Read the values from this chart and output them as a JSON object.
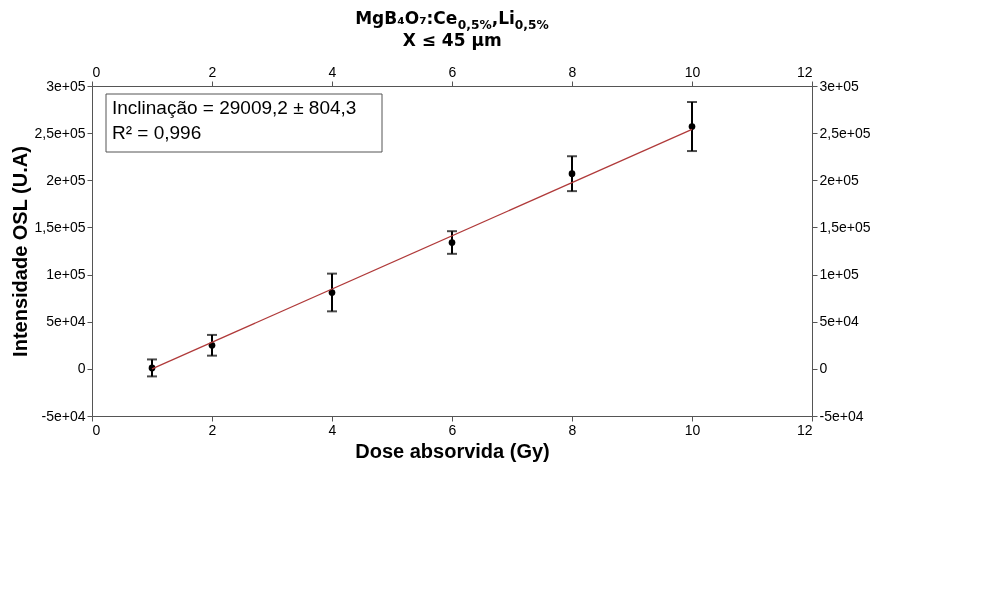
{
  "chart_data": {
    "type": "scatter",
    "title": "MgB₄O₇:Ce$_{0,5%}$,Li$_{0,5%}$",
    "subtitle": "X ≤ 45 µm",
    "xlabel": "Dose absorvida (Gy)",
    "ylabel": "Intensidade OSL (U.A)",
    "x": [
      1,
      2,
      4,
      6,
      8,
      10
    ],
    "series": [
      {
        "color": "#000000",
        "values": [
          1000,
          25000,
          81000,
          134000,
          207000,
          257000
        ],
        "errors": [
          9000,
          11000,
          20000,
          12000,
          18500,
          26000
        ]
      },
      {
        "type": "line",
        "marker": "none",
        "color": "#b03a3a",
        "x": [
          1,
          10
        ],
        "values": [
          0,
          254000
        ]
      }
    ],
    "marker": "circle",
    "xlim": [
      0,
      12
    ],
    "xticks": [
      0,
      2,
      4,
      6,
      8,
      10,
      12
    ],
    "x2lim": [
      0,
      12
    ],
    "x2ticks": [
      0,
      2,
      4,
      6,
      8,
      10,
      12
    ],
    "ylim": [
      -50000,
      300000
    ],
    "yticks": [
      {
        "value": -50000,
        "label": "-5e+04"
      },
      {
        "value": 0,
        "label": "0"
      },
      {
        "value": 50000,
        "label": "5e+04"
      },
      {
        "value": 100000,
        "label": "1e+05"
      },
      {
        "value": 150000,
        "label": "1,5e+05"
      },
      {
        "value": 200000,
        "label": "2e+05"
      },
      {
        "value": 250000,
        "label": "2,5e+05"
      },
      {
        "value": 300000,
        "label": "3e+05"
      }
    ],
    "y2lim": [
      -50000,
      300000
    ],
    "y2ticks": [
      {
        "value": -50000,
        "label": "-5e+04"
      },
      {
        "value": 0,
        "label": "0"
      },
      {
        "value": 50000,
        "label": "5e+04"
      },
      {
        "value": 100000,
        "label": "1e+05"
      },
      {
        "value": 150000,
        "label": "1,5e+05"
      },
      {
        "value": 200000,
        "label": "2e+05"
      },
      {
        "value": 250000,
        "label": "2,5e+05"
      },
      {
        "value": 300000,
        "label": "3e+05"
      }
    ],
    "annotations": [
      "Inclinação = 29009,2 ± 804,3",
      "R² = 0,996"
    ],
    "grid": false
  }
}
